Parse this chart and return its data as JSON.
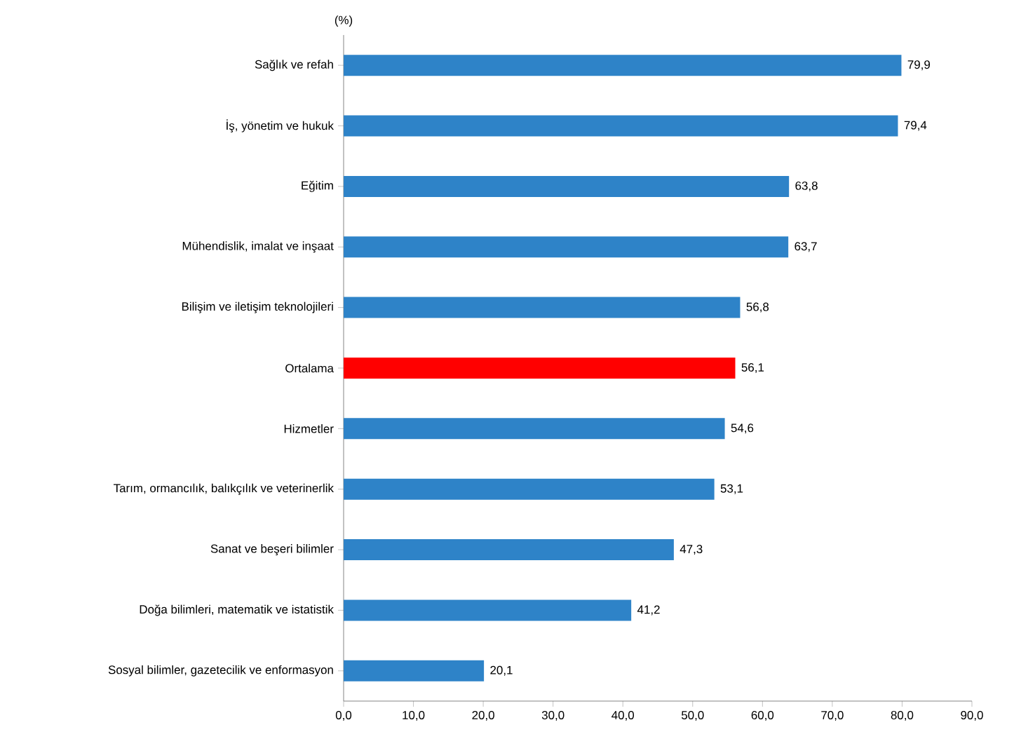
{
  "chart_data": {
    "type": "bar",
    "orientation": "horizontal",
    "xlabel": "(%)",
    "categories": [
      "Sağlık ve refah",
      "İş, yönetim ve hukuk",
      "Eğitim",
      "Mühendislik, imalat ve inşaat",
      "Bilişim ve iletişim teknolojileri",
      "Ortalama",
      "Hizmetler",
      "Tarım, ormancılık, balıkçılık ve veterinerlik",
      "Sanat ve beşeri bilimler",
      "Doğa bilimleri, matematik ve istatistik",
      "Sosyal bilimler, gazetecilik ve enformasyon"
    ],
    "values": [
      79.9,
      79.4,
      63.8,
      63.7,
      56.8,
      56.1,
      54.6,
      53.1,
      47.3,
      41.2,
      20.1
    ],
    "value_labels": [
      "79,9",
      "79,4",
      "63,8",
      "63,7",
      "56,8",
      "56,1",
      "54,6",
      "53,1",
      "47,3",
      "41,2",
      "20,1"
    ],
    "colors": [
      "#2e83c8",
      "#2e83c8",
      "#2e83c8",
      "#2e83c8",
      "#2e83c8",
      "#ff0000",
      "#2e83c8",
      "#2e83c8",
      "#2e83c8",
      "#2e83c8",
      "#2e83c8"
    ],
    "xlim": [
      0,
      90
    ],
    "xticks": [
      {
        "value": 0,
        "label": "0,0"
      },
      {
        "value": 10,
        "label": "10,0"
      },
      {
        "value": 20,
        "label": "20,0"
      },
      {
        "value": 30,
        "label": "30,0"
      },
      {
        "value": 40,
        "label": "40,0"
      },
      {
        "value": 50,
        "label": "50,0"
      },
      {
        "value": 60,
        "label": "60,0"
      },
      {
        "value": 70,
        "label": "70,0"
      },
      {
        "value": 80,
        "label": "80,0"
      },
      {
        "value": 90,
        "label": "90,0"
      }
    ],
    "grid": false
  }
}
